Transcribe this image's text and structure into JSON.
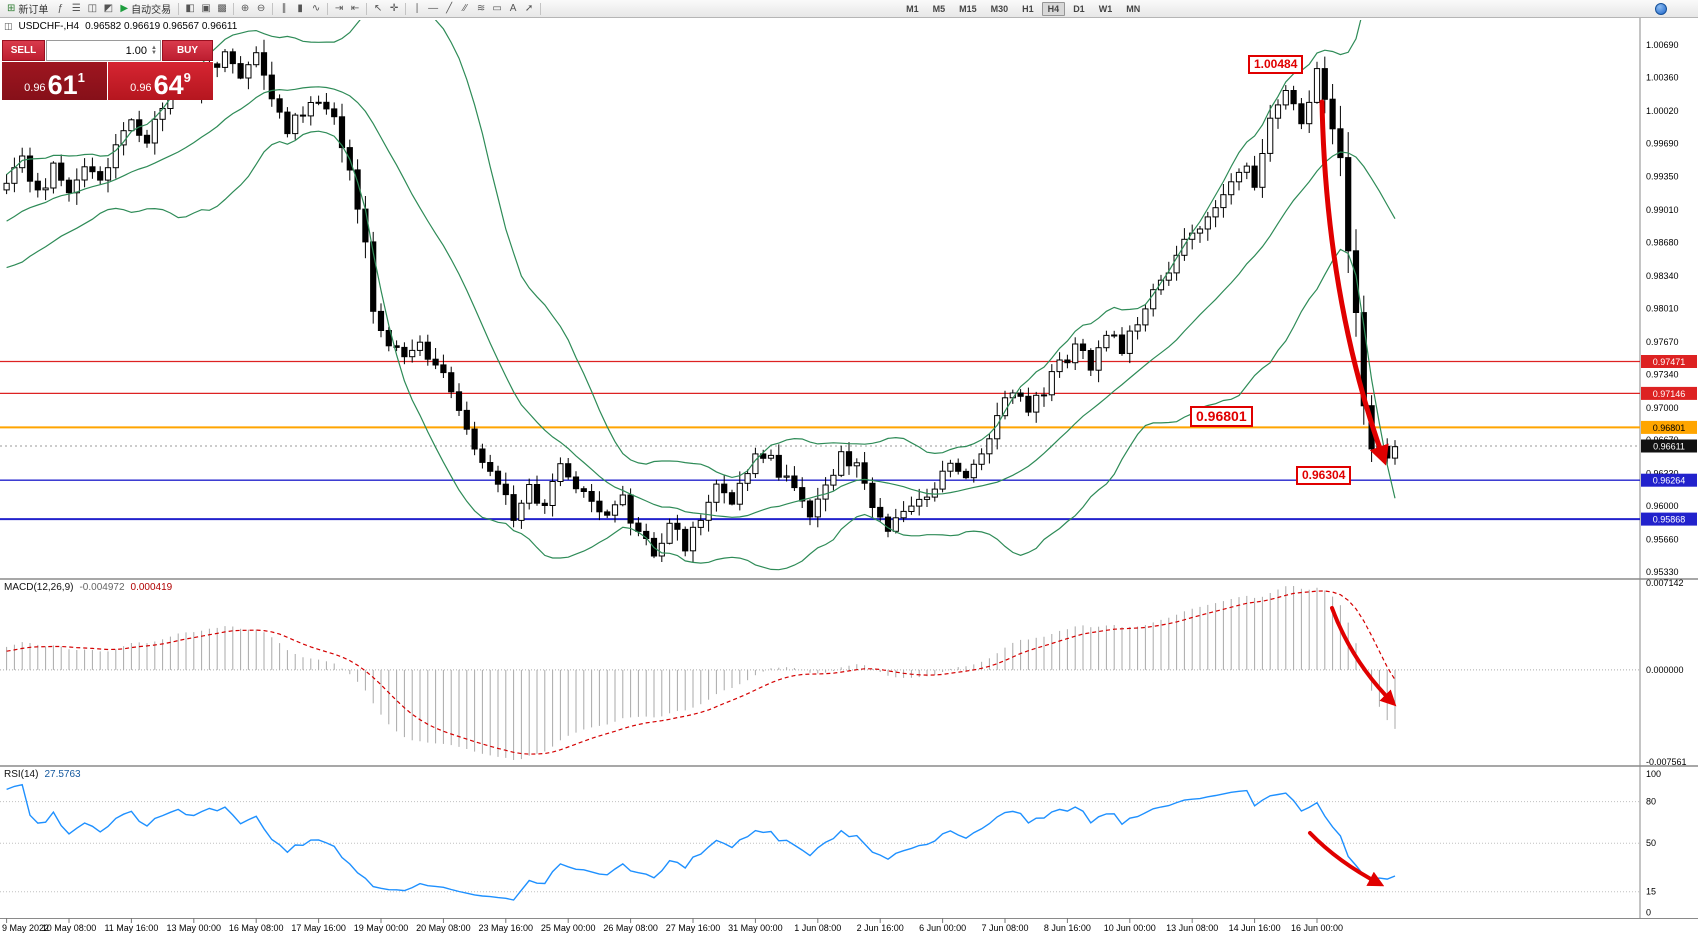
{
  "toolbar": {
    "new_order_label": "新订单",
    "new_order_icon": "⊞",
    "auto_trading_label": "自动交易",
    "auto_trading_icon": "▶",
    "icons_left": [
      {
        "name": "indicator-list-icon",
        "glyph": "ƒ",
        "color": "#555555"
      },
      {
        "name": "market-watch-icon",
        "glyph": "☰",
        "color": "#555555"
      },
      {
        "name": "data-window-icon",
        "glyph": "◫",
        "color": "#555555"
      },
      {
        "name": "strategy-tester-icon",
        "glyph": "◩",
        "color": "#555555"
      }
    ],
    "icons_mid": [
      {
        "name": "new-chart-icon",
        "glyph": "◧",
        "color": "#555555"
      },
      {
        "name": "tile-windows-icon",
        "glyph": "▣",
        "color": "#555555"
      },
      {
        "name": "cascade-windows-icon",
        "glyph": "▩",
        "color": "#555555"
      },
      {
        "sep": true
      },
      {
        "name": "zoom-in-icon",
        "glyph": "⊕",
        "color": "#555555"
      },
      {
        "name": "zoom-out-icon",
        "glyph": "⊖",
        "color": "#555555"
      },
      {
        "sep": true
      },
      {
        "name": "bar-chart-icon",
        "glyph": "∥",
        "color": "#555555"
      },
      {
        "name": "candlestick-chart-icon",
        "glyph": "▮",
        "color": "#555555"
      },
      {
        "name": "line-chart-icon",
        "glyph": "∿",
        "color": "#555555"
      },
      {
        "sep": true
      },
      {
        "name": "auto-scroll-icon",
        "glyph": "⇥",
        "color": "#555555"
      },
      {
        "name": "chart-shift-icon",
        "glyph": "⇤",
        "color": "#555555"
      },
      {
        "sep": true
      },
      {
        "name": "cursor-icon",
        "glyph": "↖",
        "color": "#555555"
      },
      {
        "name": "crosshair-icon",
        "glyph": "✛",
        "color": "#555555"
      },
      {
        "sep": true
      },
      {
        "name": "vertical-line-icon",
        "glyph": "∣",
        "color": "#555555"
      },
      {
        "name": "horizontal-line-icon",
        "glyph": "―",
        "color": "#555555"
      },
      {
        "name": "trendline-icon",
        "glyph": "╱",
        "color": "#555555"
      },
      {
        "name": "channel-icon",
        "glyph": "∕∕",
        "color": "#555555"
      },
      {
        "name": "fibonacci-icon",
        "glyph": "≋",
        "color": "#555555"
      },
      {
        "name": "shapes-icon",
        "glyph": "▭",
        "color": "#555555"
      },
      {
        "name": "text-label-icon",
        "glyph": "A",
        "color": "#555555"
      },
      {
        "name": "arrow-tools-icon",
        "glyph": "➚",
        "color": "#555555"
      }
    ],
    "timeframes": [
      "M1",
      "M5",
      "M15",
      "M30",
      "H1",
      "H4",
      "D1",
      "W1",
      "MN"
    ],
    "active_timeframe": "H4",
    "community_icon_color": "#1d64c8"
  },
  "chart_header": {
    "icon_glyph": "◫",
    "symbol_title": "USDCHF-,H4",
    "ohlc": "0.96582 0.96619 0.96567 0.96611"
  },
  "one_click": {
    "sell_label": "SELL",
    "buy_label": "BUY",
    "volume": "1.00",
    "spinner_up": "▲",
    "spinner_down": "▼",
    "sell_price_small": "0.96",
    "sell_price_big": "61",
    "sell_price_sup": "1",
    "buy_price_small": "0.96",
    "buy_price_big": "64",
    "buy_price_sup": "9"
  },
  "macd_label": {
    "name": "MACD(12,26,9)",
    "value_main": "-0.004972",
    "value_signal": "0.000419"
  },
  "rsi_label": {
    "name": "RSI(14)",
    "value": "27.5763"
  },
  "annotations": {
    "peak_label": "1.00484",
    "mid_label": "0.96801",
    "low_label": "0.96304",
    "arrow_color": "#e00000"
  },
  "chart_data": {
    "type": "candlestick",
    "title": "USDCHF-,H4",
    "symbol": "USDCHF-",
    "timeframe": "H4",
    "bars": 179,
    "noise": 0.0007,
    "wick": 0.0009,
    "main_range": [
      1.00944,
      0.95269
    ],
    "price_axis_labels": [
      "1.00690",
      "1.00360",
      "1.00020",
      "0.99690",
      "0.99350",
      "0.99010",
      "0.98680",
      "0.98340",
      "0.98010",
      "0.97670",
      "0.97340",
      "0.97000",
      "0.96670",
      "0.96330",
      "0.96000",
      "0.95660",
      "0.95330"
    ],
    "price_waypoints": [
      [
        0,
        0.993
      ],
      [
        2,
        0.9955
      ],
      [
        4,
        0.9915
      ],
      [
        6,
        0.9945
      ],
      [
        8,
        0.992
      ],
      [
        10,
        0.995
      ],
      [
        12,
        0.9935
      ],
      [
        14,
        0.9965
      ],
      [
        16,
        0.999
      ],
      [
        18,
        0.9975
      ],
      [
        20,
        1.0
      ],
      [
        22,
        1.003
      ],
      [
        24,
        1.0015
      ],
      [
        26,
        1.0045
      ],
      [
        28,
        1.006
      ],
      [
        30,
        1.0035
      ],
      [
        32,
        1.006
      ],
      [
        34,
        1.001
      ],
      [
        36,
        0.9985
      ],
      [
        38,
        1.0
      ],
      [
        40,
        1.001
      ],
      [
        42,
        0.999
      ],
      [
        44,
        0.994
      ],
      [
        46,
        0.9865
      ],
      [
        47,
        0.98
      ],
      [
        49,
        0.977
      ],
      [
        51,
        0.9745
      ],
      [
        53,
        0.9765
      ],
      [
        55,
        0.9745
      ],
      [
        57,
        0.972
      ],
      [
        59,
        0.968
      ],
      [
        61,
        0.965
      ],
      [
        63,
        0.9625
      ],
      [
        65,
        0.959
      ],
      [
        67,
        0.9615
      ],
      [
        69,
        0.96
      ],
      [
        71,
        0.964
      ],
      [
        73,
        0.962
      ],
      [
        75,
        0.96
      ],
      [
        77,
        0.9585
      ],
      [
        79,
        0.9605
      ],
      [
        81,
        0.957
      ],
      [
        83,
        0.9555
      ],
      [
        85,
        0.958
      ],
      [
        87,
        0.956
      ],
      [
        89,
        0.9585
      ],
      [
        91,
        0.962
      ],
      [
        93,
        0.96
      ],
      [
        95,
        0.964
      ],
      [
        97,
        0.9655
      ],
      [
        99,
        0.9635
      ],
      [
        101,
        0.9615
      ],
      [
        103,
        0.9595
      ],
      [
        105,
        0.9625
      ],
      [
        107,
        0.965
      ],
      [
        109,
        0.964
      ],
      [
        111,
        0.96
      ],
      [
        113,
        0.9575
      ],
      [
        115,
        0.959
      ],
      [
        117,
        0.961
      ],
      [
        119,
        0.962
      ],
      [
        121,
        0.9645
      ],
      [
        123,
        0.963
      ],
      [
        125,
        0.965
      ],
      [
        127,
        0.969
      ],
      [
        129,
        0.972
      ],
      [
        131,
        0.97
      ],
      [
        133,
        0.9715
      ],
      [
        135,
        0.9745
      ],
      [
        137,
        0.976
      ],
      [
        139,
        0.9745
      ],
      [
        141,
        0.978
      ],
      [
        143,
        0.976
      ],
      [
        145,
        0.979
      ],
      [
        147,
        0.9815
      ],
      [
        149,
        0.984
      ],
      [
        151,
        0.9865
      ],
      [
        153,
        0.9885
      ],
      [
        155,
        0.991
      ],
      [
        157,
        0.9935
      ],
      [
        159,
        0.995
      ],
      [
        160,
        0.993
      ],
      [
        162,
        0.9995
      ],
      [
        164,
        1.002
      ],
      [
        166,
        0.999
      ],
      [
        168,
        1.0045
      ],
      [
        169,
        1.001
      ],
      [
        170,
        0.9985
      ],
      [
        171,
        0.995
      ],
      [
        172,
        0.986
      ],
      [
        173,
        0.979
      ],
      [
        174,
        0.97
      ],
      [
        175,
        0.9663
      ],
      [
        176,
        0.9655
      ],
      [
        177,
        0.9648
      ],
      [
        178,
        0.9661
      ]
    ],
    "levels": [
      {
        "price": 0.97471,
        "label": "0.97471",
        "color": "#dd2222",
        "text": "#ffffff",
        "width": 1.3
      },
      {
        "price": 0.97146,
        "label": "0.97146",
        "color": "#dd2222",
        "text": "#ffffff",
        "width": 1.3
      },
      {
        "price": 0.96801,
        "label": "0.96801",
        "color": "#ffa500",
        "text": "#000000",
        "width": 2
      },
      {
        "price": 0.96264,
        "label": "0.96264",
        "color": "#2222cc",
        "text": "#ffffff",
        "width": 1.3
      },
      {
        "price": 0.95868,
        "label": "0.95868",
        "color": "#2222cc",
        "text": "#ffffff",
        "width": 2
      }
    ],
    "current_price": {
      "value": 0.96611,
      "label": "0.96611"
    },
    "bollinger": {
      "period": 20,
      "deviation": 2,
      "color": "#2e8b57"
    },
    "macd": {
      "params": [
        12,
        26,
        9
      ],
      "hist_color": "#a9a9a9",
      "signal_color": "#d40000",
      "range": [
        0.00739,
        -0.00781
      ],
      "fit_max": 0.0069,
      "fit_min": -0.0074,
      "axis": [
        {
          "v": 0.007142,
          "label": "0.007142"
        },
        {
          "v": 0,
          "label": "0.000000"
        },
        {
          "v": -0.007561,
          "label": "-0.007561"
        }
      ]
    },
    "rsi": {
      "period": 14,
      "color": "#1e90ff",
      "range": [
        105,
        -4
      ],
      "axis": [
        100,
        80,
        50,
        15,
        0
      ],
      "levels": [
        80,
        50,
        15
      ]
    },
    "date_step_bars": 8,
    "date_labels": [
      "9 May 2022",
      "10 May 08:00",
      "11 May 16:00",
      "13 May 00:00",
      "16 May 08:00",
      "17 May 16:00",
      "19 May 00:00",
      "20 May 08:00",
      "23 May 16:00",
      "25 May 00:00",
      "26 May 08:00",
      "27 May 16:00",
      "31 May 00:00",
      "1 Jun 08:00",
      "2 Jun 16:00",
      "6 Jun 00:00",
      "7 Jun 08:00",
      "8 Jun 16:00",
      "10 Jun 00:00",
      "13 Jun 08:00",
      "14 Jun 16:00",
      "16 Jun 00:00"
    ]
  }
}
